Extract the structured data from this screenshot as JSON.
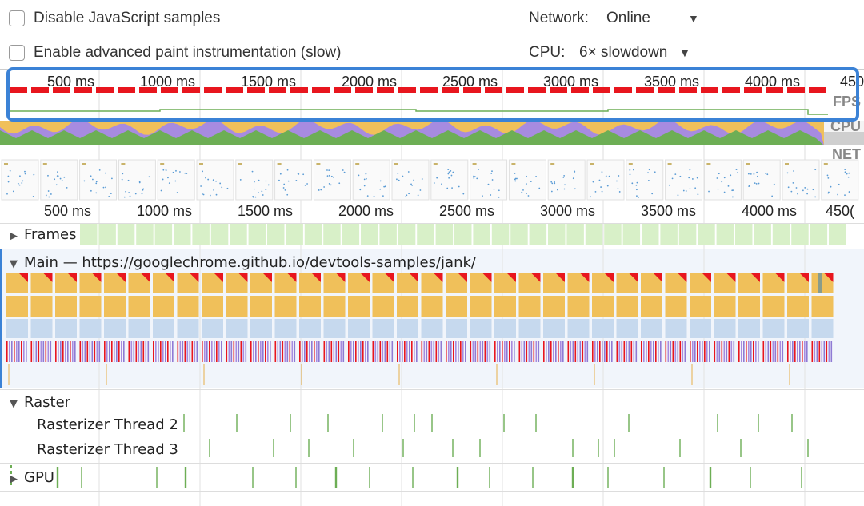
{
  "settings": {
    "disable_js_samples": {
      "label": "Disable JavaScript samples",
      "checked": false
    },
    "advanced_paint": {
      "label": "Enable advanced paint instrumentation (slow)",
      "checked": false
    },
    "network": {
      "label": "Network:",
      "value": "Online"
    },
    "cpu": {
      "label": "CPU:",
      "value": "6× slowdown"
    }
  },
  "overview": {
    "ticks": [
      "500 ms",
      "1000 ms",
      "1500 ms",
      "2000 ms",
      "2500 ms",
      "3000 ms",
      "3500 ms",
      "4000 ms",
      "450"
    ],
    "labels": {
      "fps": "FPS",
      "cpu": "CPU",
      "net": "NET"
    }
  },
  "ruler": {
    "ticks": [
      "500 ms",
      "1000 ms",
      "1500 ms",
      "2000 ms",
      "2500 ms",
      "3000 ms",
      "3500 ms",
      "4000 ms",
      "450("
    ]
  },
  "tracks": {
    "frames": "Frames",
    "main": "Main — https://googlechrome.github.io/devtools-samples/jank/",
    "raster": "Raster",
    "rasterizer_2": "Rasterizer Thread 2",
    "rasterizer_3": "Rasterizer Thread 3",
    "gpu": "GPU"
  },
  "colors": {
    "accent": "#3b82d6",
    "fps_red": "#e8161e",
    "scripting": "#f0c05a",
    "rendering": "#a78be0",
    "painting": "#6dae55",
    "task_blue": "#c6d9ee",
    "frame_green": "#d8f0c8"
  }
}
